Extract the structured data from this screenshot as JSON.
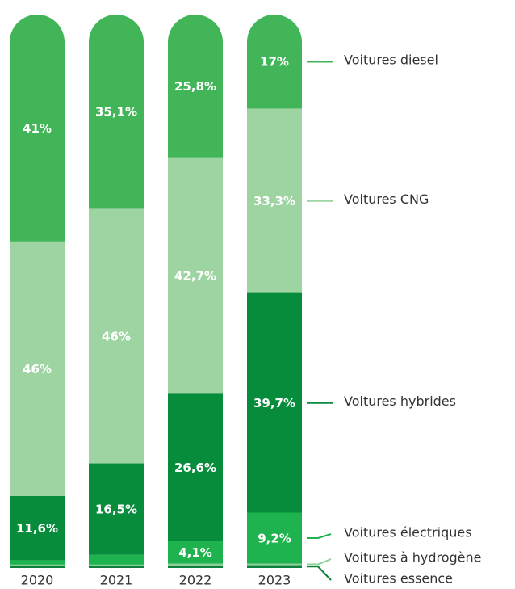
{
  "chart_data": {
    "type": "stacked_bar",
    "categories": [
      "2020",
      "2021",
      "2022",
      "2023"
    ],
    "ylim": [
      0,
      100
    ],
    "series": [
      {
        "name": "Voitures essence",
        "color": "#0b7f3b",
        "values": [
          0.4,
          0.4,
          0.4,
          0.5
        ],
        "value_labels": [
          null,
          null,
          null,
          null
        ]
      },
      {
        "name": "Voitures à hydrogène",
        "color": "#8ccf97",
        "values": [
          0.2,
          0.2,
          0.4,
          0.3
        ],
        "value_labels": [
          null,
          null,
          null,
          null
        ]
      },
      {
        "name": "Voitures électriques",
        "color": "#1fb34f",
        "values": [
          0.8,
          1.8,
          4.1,
          9.2
        ],
        "value_labels": [
          null,
          null,
          "4,1%",
          "9,2%"
        ]
      },
      {
        "name": "Voitures hybrides",
        "color": "#078c3c",
        "values": [
          11.6,
          16.5,
          26.6,
          39.7
        ],
        "value_labels": [
          "11,6%",
          "16,5%",
          "26,6%",
          "39,7%"
        ]
      },
      {
        "name": "Voitures CNG",
        "color": "#9dd4a2",
        "values": [
          46,
          46,
          42.7,
          33.3
        ],
        "value_labels": [
          "46%",
          "46%",
          "42,7%",
          "33,3%"
        ]
      },
      {
        "name": "Voitures diesel",
        "color": "#41b558",
        "values": [
          41,
          35.1,
          25.8,
          17
        ],
        "value_labels": [
          "41%",
          "35,1%",
          "25,8%",
          "17%"
        ]
      }
    ]
  }
}
